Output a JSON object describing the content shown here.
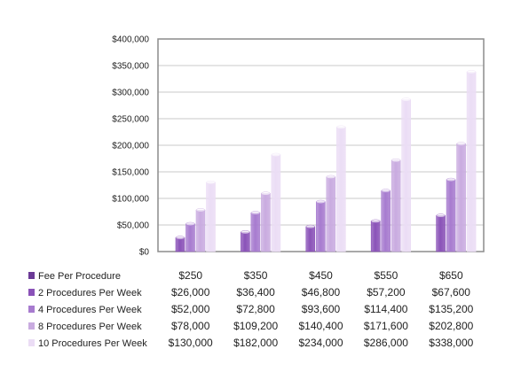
{
  "chart_data": {
    "type": "bar",
    "categories": [
      "$250",
      "$350",
      "$450",
      "$550",
      "$650"
    ],
    "series": [
      {
        "name": "2 Procedures Per Week",
        "values": [
          26000,
          36400,
          46800,
          57200,
          67600
        ],
        "color": "#8a52b8"
      },
      {
        "name": "4 Procedures Per Week",
        "values": [
          52000,
          72800,
          93600,
          114400,
          135200
        ],
        "color": "#a77bcf"
      },
      {
        "name": "8 Procedures Per Week",
        "values": [
          78000,
          109200,
          140400,
          171600,
          202800
        ],
        "color": "#c9abe0"
      },
      {
        "name": "10 Procedures Per Week",
        "values": [
          130000,
          182000,
          234000,
          286000,
          338000
        ],
        "color": "#ebddf5"
      }
    ],
    "ylim": [
      0,
      400000
    ],
    "yticks": [
      "$0",
      "$50,000",
      "$100,000",
      "$150,000",
      "$200,000",
      "$250,000",
      "$300,000",
      "$350,000",
      "$400,000"
    ],
    "grid": true,
    "legend": "data table below chart",
    "table": {
      "header_row_label": "Fee Per Procedure",
      "header_color": "#6b3a96",
      "rows": [
        {
          "label": "2 Procedures Per Week",
          "cells": [
            "$26,000",
            "$36,400",
            "$46,800",
            "$57,200",
            "$67,600"
          ]
        },
        {
          "label": "4 Procedures Per Week",
          "cells": [
            "$52,000",
            "$72,800",
            "$93,600",
            "$114,400",
            "$135,200"
          ]
        },
        {
          "label": "8 Procedures Per Week",
          "cells": [
            "$78,000",
            "$109,200",
            "$140,400",
            "$171,600",
            "$202,800"
          ]
        },
        {
          "label": "10 Procedures Per Week",
          "cells": [
            "$130,000",
            "$182,000",
            "$234,000",
            "$286,000",
            "$338,000"
          ]
        }
      ]
    }
  }
}
